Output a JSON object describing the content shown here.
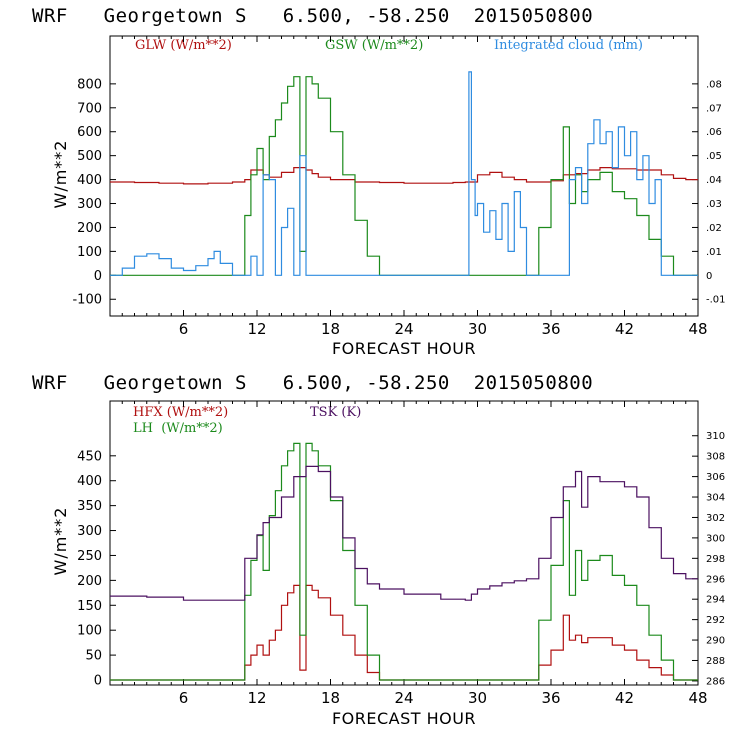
{
  "chart_data": [
    {
      "type": "line",
      "title": "WRF   Georgetown S   6.500, -58.250  2015050800",
      "xlabel": "FORECAST HOUR",
      "ylabel": "W/m**2",
      "xlim": [
        0,
        48
      ],
      "ylim": [
        -170,
        1000
      ],
      "xticks": [
        "6",
        "12",
        "18",
        "24",
        "30",
        "36",
        "42",
        "48"
      ],
      "yticks": [
        "-100",
        "0",
        "100",
        "200",
        "300",
        "400",
        "500",
        "600",
        "700",
        "800"
      ],
      "y2lim": [
        -0.017,
        0.1
      ],
      "y2ticks": [
        "-.01",
        "0",
        ".01",
        ".02",
        ".03",
        ".04",
        ".05",
        ".06",
        ".07",
        ".08"
      ],
      "grid": false,
      "legend_position": "top",
      "series": [
        {
          "name": "GLW (W/m**2)",
          "color": "#b01010",
          "axis": "left",
          "x": [
            0,
            2,
            4,
            6,
            8,
            9.5,
            10,
            11,
            11.5,
            12.5,
            13,
            14,
            15,
            16,
            16.5,
            17,
            18,
            20,
            22,
            24,
            26,
            28,
            29,
            30,
            31,
            32,
            33,
            34,
            35,
            36,
            37,
            38,
            39,
            40,
            41,
            42,
            43,
            44,
            45,
            46,
            47,
            48
          ],
          "values": [
            390,
            388,
            385,
            382,
            385,
            385,
            390,
            400,
            440,
            420,
            410,
            430,
            450,
            440,
            425,
            410,
            400,
            390,
            388,
            385,
            385,
            388,
            390,
            420,
            430,
            410,
            400,
            390,
            390,
            395,
            420,
            425,
            440,
            450,
            445,
            445,
            440,
            440,
            420,
            405,
            400,
            400
          ]
        },
        {
          "name": "GSW (W/m**2)",
          "color": "#1c8a1c",
          "axis": "left",
          "x": [
            0,
            9.8,
            11,
            11.5,
            12,
            12.5,
            13,
            13.5,
            14,
            14.5,
            15,
            15.3,
            15.5,
            16,
            16.5,
            17,
            18,
            19,
            20,
            21,
            22,
            24,
            30,
            34,
            35,
            36,
            37,
            37.5,
            38,
            38.5,
            39,
            40,
            41,
            42,
            43,
            44,
            45,
            46,
            48
          ],
          "values": [
            0,
            0,
            250,
            420,
            530,
            400,
            580,
            650,
            720,
            790,
            830,
            830,
            100,
            830,
            800,
            740,
            600,
            420,
            230,
            80,
            0,
            0,
            0,
            0,
            200,
            400,
            620,
            300,
            420,
            350,
            400,
            430,
            350,
            320,
            250,
            150,
            80,
            0,
            0
          ]
        },
        {
          "name": "Integrated cloud (mm)",
          "color": "#2f8ce0",
          "axis": "right",
          "x": [
            0,
            1,
            2,
            3,
            4,
            5,
            6,
            7,
            8,
            8.5,
            9,
            10,
            11,
            11.5,
            12,
            12.5,
            13,
            13.5,
            14,
            14.5,
            15,
            15.5,
            16,
            20,
            29,
            29.3,
            29.5,
            29.8,
            30,
            30.5,
            31,
            31.5,
            32,
            32.5,
            33,
            33.5,
            34,
            36,
            37,
            37.5,
            38,
            38.5,
            39,
            39.5,
            40,
            40.5,
            41,
            41.5,
            42,
            42.5,
            43,
            43.5,
            44,
            44.5,
            45,
            48
          ],
          "values": [
            0,
            0.003,
            0.008,
            0.009,
            0.007,
            0.003,
            0.002,
            0.004,
            0.007,
            0.01,
            0.005,
            0,
            0,
            0.008,
            0,
            0.042,
            0.04,
            0,
            0.02,
            0.028,
            0,
            0.05,
            0,
            0,
            0,
            0.085,
            0.04,
            0.025,
            0.03,
            0.018,
            0.027,
            0.015,
            0.03,
            0.01,
            0.035,
            0.02,
            0,
            0,
            0,
            0.04,
            0.045,
            0.03,
            0.055,
            0.065,
            0.055,
            0.06,
            0.045,
            0.062,
            0.05,
            0.06,
            0.04,
            0.05,
            0.03,
            0.04,
            0,
            0
          ]
        }
      ]
    },
    {
      "type": "line",
      "title": "WRF   Georgetown S   6.500, -58.250  2015050800",
      "xlabel": "FORECAST HOUR",
      "ylabel": "W/m**2",
      "xlim": [
        0,
        48
      ],
      "ylim": [
        -10,
        560
      ],
      "xticks": [
        "6",
        "12",
        "18",
        "24",
        "30",
        "36",
        "42",
        "48"
      ],
      "yticks": [
        "0",
        "50",
        "100",
        "150",
        "200",
        "250",
        "300",
        "350",
        "400",
        "450"
      ],
      "y2lim": [
        285.6,
        313.4
      ],
      "y2ticks": [
        "286",
        "288",
        "290",
        "292",
        "294",
        "296",
        "298",
        "300",
        "302",
        "304",
        "306",
        "308",
        "310"
      ],
      "grid": false,
      "legend_position": "top",
      "series": [
        {
          "name": "HFX (W/m**2)",
          "color": "#b01010",
          "axis": "left",
          "x": [
            0,
            9.8,
            11,
            11.5,
            12,
            12.5,
            13,
            13.5,
            14,
            14.5,
            15,
            15.3,
            15.5,
            16,
            16.5,
            17,
            18,
            19,
            20,
            21,
            22,
            24,
            30,
            34,
            35,
            36,
            37,
            37.5,
            38,
            38.5,
            39,
            40,
            41,
            42,
            43,
            44,
            45,
            46,
            48
          ],
          "values": [
            0,
            0,
            30,
            50,
            70,
            50,
            80,
            100,
            150,
            175,
            190,
            190,
            20,
            190,
            180,
            165,
            130,
            90,
            50,
            15,
            0,
            0,
            0,
            0,
            30,
            60,
            130,
            80,
            90,
            75,
            85,
            85,
            70,
            60,
            40,
            25,
            10,
            0,
            0
          ]
        },
        {
          "name": "LH  (W/m**2)",
          "color": "#1c8a1c",
          "axis": "left",
          "x": [
            0,
            9.8,
            11,
            11.5,
            12,
            12.5,
            13,
            13.5,
            14,
            14.5,
            15,
            15.3,
            15.5,
            16,
            16.5,
            17,
            18,
            19,
            20,
            21,
            22,
            24,
            30,
            34,
            35,
            36,
            37,
            37.5,
            38,
            38.5,
            39,
            40,
            41,
            42,
            43,
            44,
            45,
            46,
            48
          ],
          "values": [
            0,
            0,
            170,
            240,
            290,
            220,
            330,
            380,
            430,
            460,
            475,
            475,
            90,
            475,
            460,
            430,
            360,
            260,
            150,
            50,
            0,
            0,
            0,
            0,
            120,
            230,
            360,
            170,
            260,
            200,
            240,
            250,
            210,
            190,
            150,
            90,
            40,
            0,
            0
          ]
        },
        {
          "name": "TSK (K)",
          "color": "#4b1060",
          "axis": "right",
          "x": [
            0,
            3,
            6,
            9.8,
            11,
            12,
            12.5,
            13,
            14,
            15,
            16,
            17,
            18,
            19,
            20,
            21,
            22,
            24,
            27,
            29,
            29.5,
            30,
            31,
            32,
            33,
            34,
            35,
            36,
            37,
            38,
            38.5,
            39,
            40,
            41,
            42,
            43,
            44,
            45,
            46,
            47,
            48
          ],
          "values": [
            294.3,
            294.2,
            293.9,
            293.9,
            298,
            300.3,
            301.5,
            302,
            304,
            306,
            307,
            306.5,
            304,
            300,
            297,
            295.5,
            295,
            294.5,
            294,
            293.9,
            294.5,
            295,
            295.3,
            295.6,
            295.8,
            296,
            298,
            302,
            305,
            306.5,
            303,
            306,
            305.5,
            305.5,
            305,
            304,
            301,
            298,
            296.5,
            296,
            296
          ]
        }
      ]
    }
  ]
}
